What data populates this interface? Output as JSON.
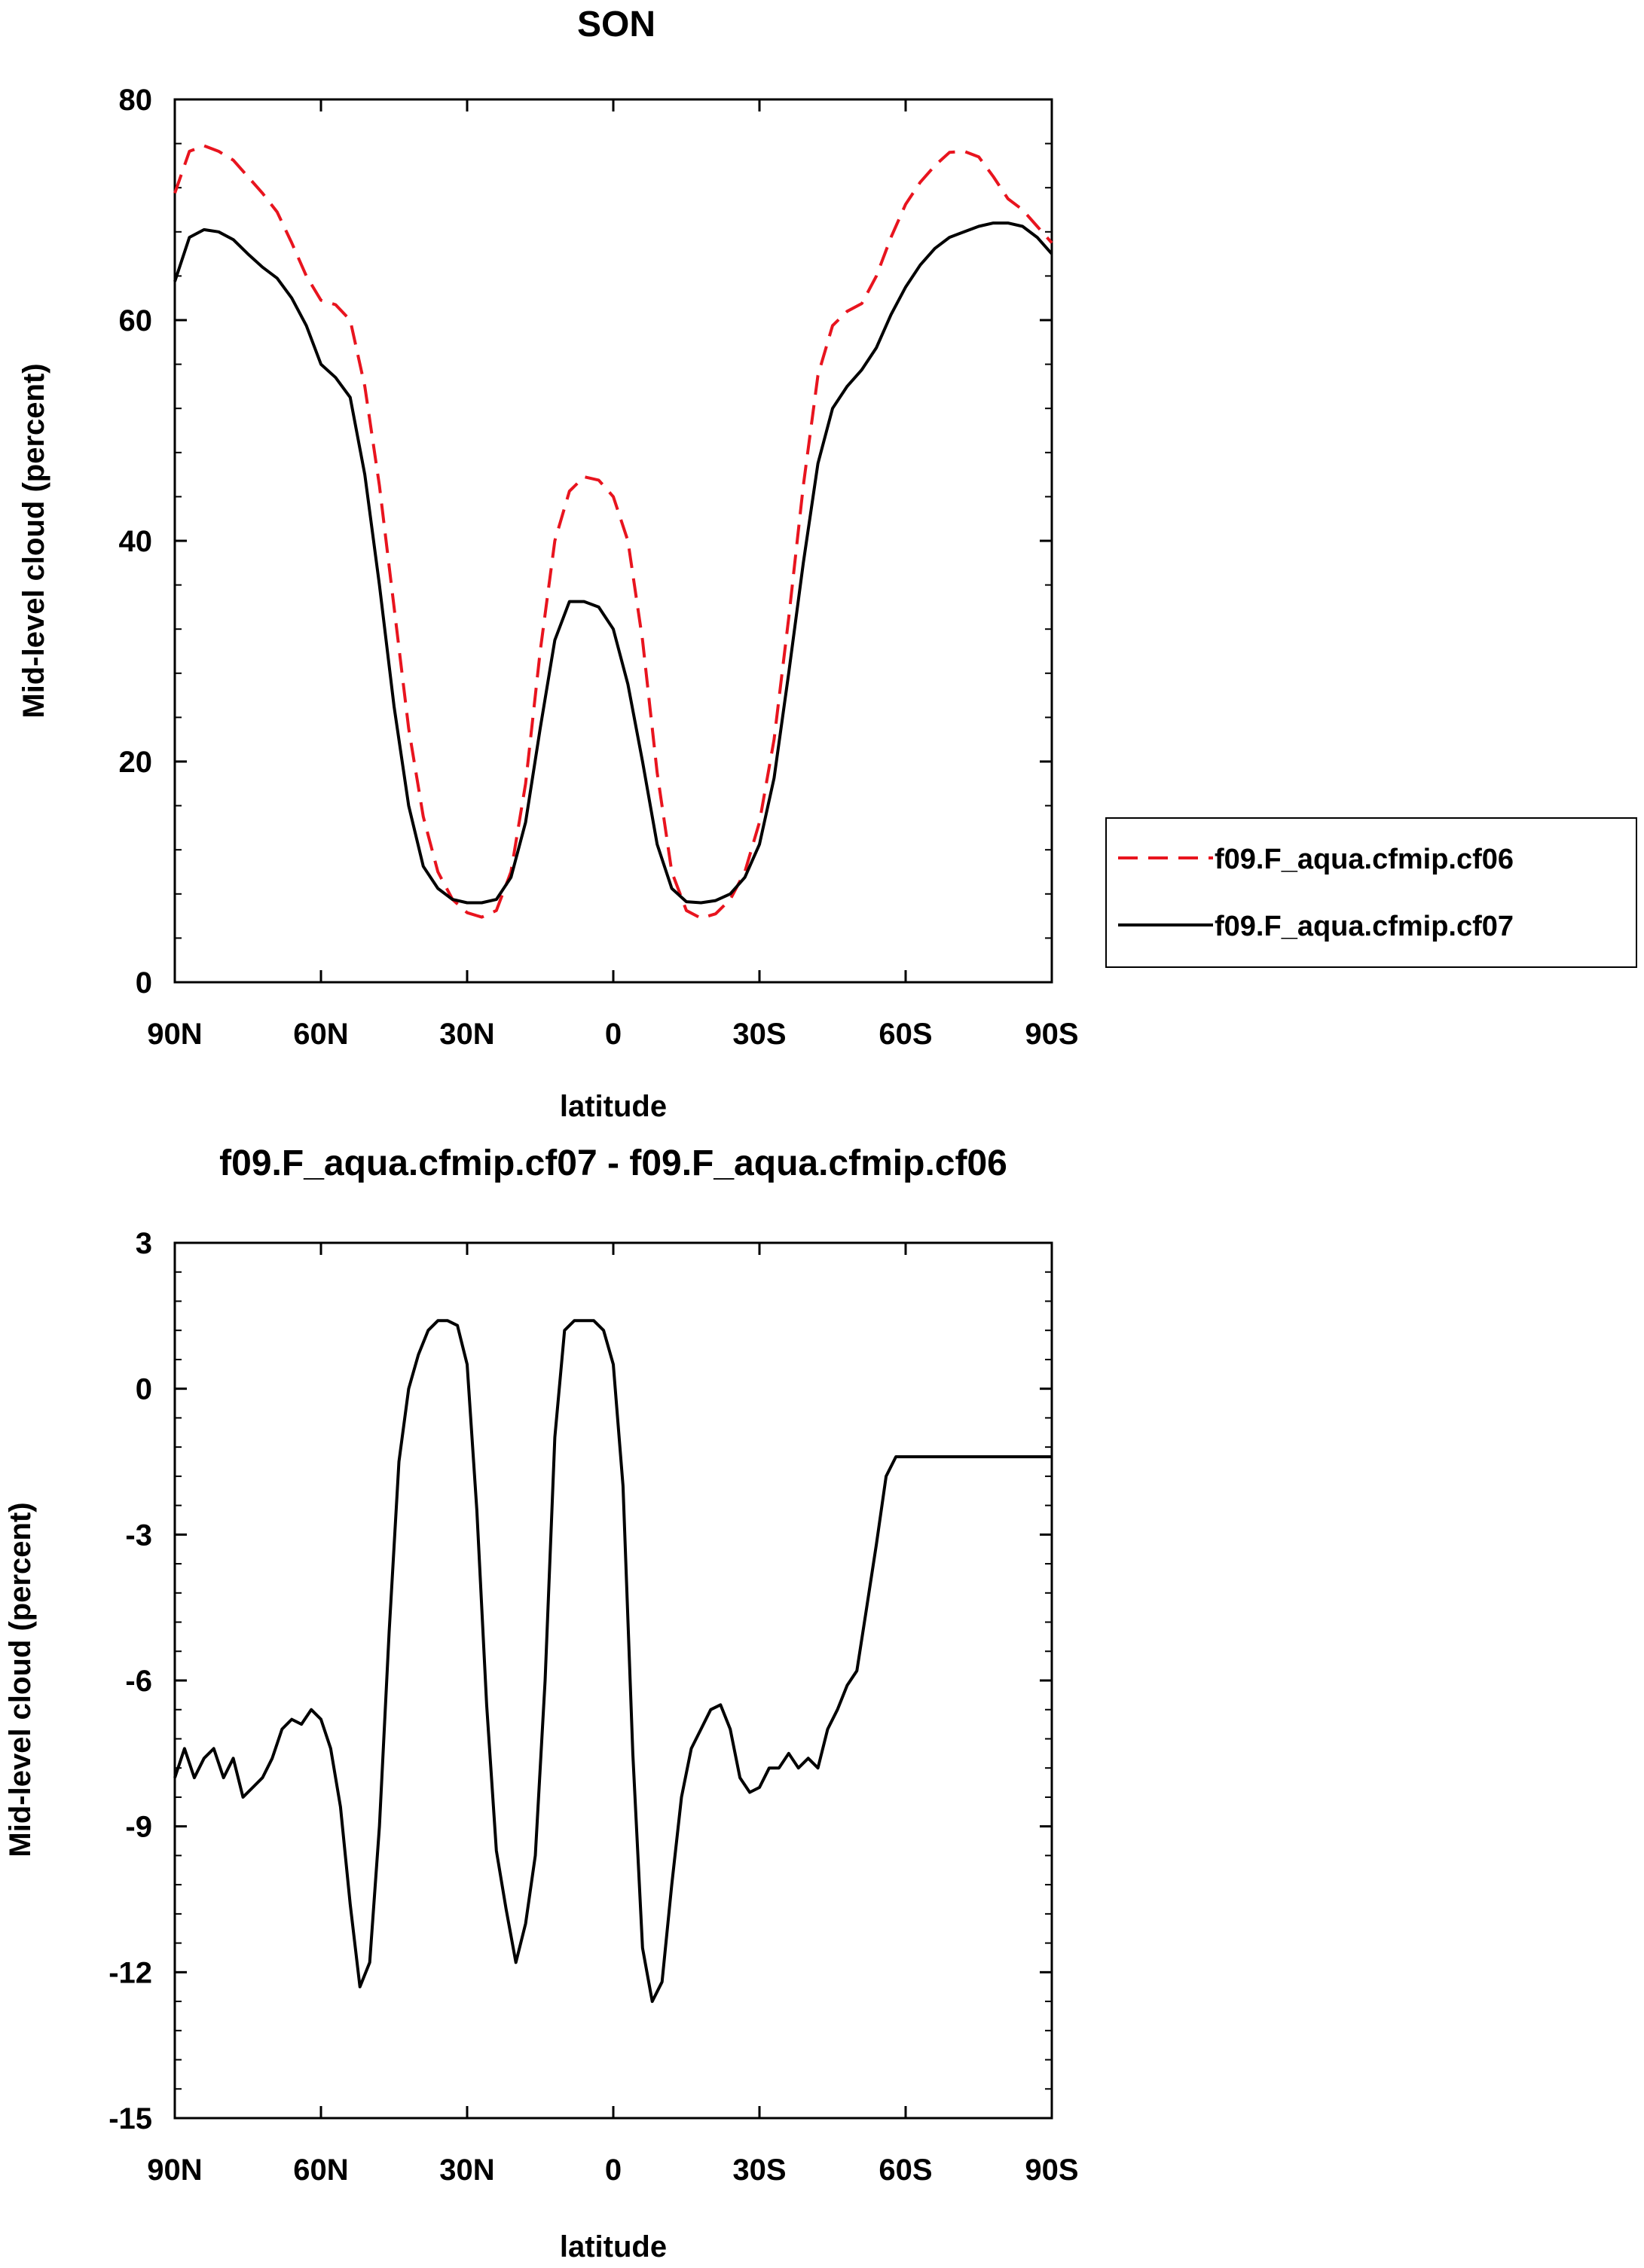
{
  "chart_data": [
    {
      "type": "line",
      "title": "SON",
      "xlabel": "latitude",
      "ylabel": "Mid-level cloud (percent)",
      "xlim": [
        90,
        -90
      ],
      "ylim": [
        0,
        80
      ],
      "xticks": [
        {
          "value": 90,
          "label": "90N"
        },
        {
          "value": 60,
          "label": "60N"
        },
        {
          "value": 30,
          "label": "30N"
        },
        {
          "value": 0,
          "label": "0"
        },
        {
          "value": -30,
          "label": "30S"
        },
        {
          "value": -60,
          "label": "60S"
        },
        {
          "value": -90,
          "label": "90S"
        }
      ],
      "yticks": [
        {
          "value": 0,
          "label": "0"
        },
        {
          "value": 20,
          "label": "20"
        },
        {
          "value": 40,
          "label": "40"
        },
        {
          "value": 60,
          "label": "60"
        },
        {
          "value": 80,
          "label": "80"
        }
      ],
      "yminor_step": 4,
      "legend_position": "right",
      "x": [
        90,
        87,
        84,
        81,
        78,
        75,
        72,
        69,
        66,
        63,
        60,
        57,
        54,
        51,
        48,
        45,
        42,
        39,
        36,
        33,
        30,
        27,
        24,
        21,
        18,
        15,
        12,
        9,
        6,
        3,
        0,
        -3,
        -6,
        -9,
        -12,
        -15,
        -18,
        -21,
        -24,
        -27,
        -30,
        -33,
        -36,
        -39,
        -42,
        -45,
        -48,
        -51,
        -54,
        -57,
        -60,
        -63,
        -66,
        -69,
        -72,
        -75,
        -78,
        -81,
        -84,
        -87,
        -90
      ],
      "series": [
        {
          "name": "f09.F_aqua.cfmip.cf06",
          "color": "#e8141e",
          "dash": "dashed",
          "values": [
            71.5,
            75.3,
            75.8,
            75.3,
            74.5,
            73.0,
            71.5,
            69.8,
            67.0,
            64.0,
            61.8,
            61.4,
            60.0,
            54.0,
            45.0,
            34.0,
            23.0,
            15.0,
            10.0,
            7.5,
            6.3,
            5.9,
            6.5,
            10.0,
            18.0,
            30.0,
            40.0,
            44.5,
            45.8,
            45.5,
            44.0,
            40.0,
            31.0,
            19.0,
            10.0,
            6.5,
            5.8,
            6.2,
            7.5,
            10.0,
            14.5,
            22.0,
            33.0,
            45.0,
            55.0,
            59.5,
            60.8,
            61.5,
            64.0,
            67.5,
            70.5,
            72.5,
            74.0,
            75.2,
            75.3,
            74.8,
            73.0,
            71.0,
            70.0,
            68.5,
            67.0
          ]
        },
        {
          "name": "f09.F_aqua.cfmip.cf07",
          "color": "#000000",
          "dash": "solid",
          "values": [
            63.5,
            67.5,
            68.2,
            68.0,
            67.3,
            66.0,
            64.8,
            63.8,
            62.0,
            59.5,
            56.0,
            54.8,
            53.0,
            46.0,
            36.0,
            25.0,
            16.0,
            10.5,
            8.5,
            7.5,
            7.2,
            7.2,
            7.5,
            9.5,
            14.5,
            23.0,
            31.0,
            34.5,
            34.5,
            34.0,
            32.0,
            27.0,
            20.0,
            12.5,
            8.5,
            7.3,
            7.2,
            7.4,
            8.0,
            9.5,
            12.5,
            18.5,
            28.0,
            38.0,
            47.0,
            52.0,
            54.0,
            55.5,
            57.5,
            60.5,
            63.0,
            65.0,
            66.5,
            67.5,
            68.0,
            68.5,
            68.8,
            68.8,
            68.5,
            67.5,
            66.0
          ]
        }
      ]
    },
    {
      "type": "line",
      "title": "f09.F_aqua.cfmip.cf07 - f09.F_aqua.cfmip.cf06",
      "xlabel": "latitude",
      "ylabel": "Mid-level cloud (percent)",
      "xlim": [
        90,
        -90
      ],
      "ylim": [
        -15,
        3
      ],
      "xticks": [
        {
          "value": 90,
          "label": "90N"
        },
        {
          "value": 60,
          "label": "60N"
        },
        {
          "value": 30,
          "label": "30N"
        },
        {
          "value": 0,
          "label": "0"
        },
        {
          "value": -30,
          "label": "30S"
        },
        {
          "value": -60,
          "label": "60S"
        },
        {
          "value": -90,
          "label": "90S"
        }
      ],
      "yticks": [
        {
          "value": 3,
          "label": "3"
        },
        {
          "value": 0,
          "label": "0"
        },
        {
          "value": -3,
          "label": "-3"
        },
        {
          "value": -6,
          "label": "-6"
        },
        {
          "value": -9,
          "label": "-9"
        },
        {
          "value": -12,
          "label": "-12"
        },
        {
          "value": -15,
          "label": "-15"
        }
      ],
      "yminor_step": 0.6,
      "x": [
        90,
        88,
        86,
        84,
        82,
        80,
        78,
        76,
        74,
        72,
        70,
        68,
        66,
        64,
        62,
        60,
        58,
        56,
        54,
        52,
        50,
        48,
        46,
        44,
        42,
        40,
        38,
        36,
        34,
        32,
        30,
        28,
        26,
        24,
        22,
        20,
        18,
        16,
        14,
        12,
        10,
        8,
        6,
        4,
        2,
        0,
        -2,
        -4,
        -6,
        -8,
        -10,
        -12,
        -14,
        -16,
        -18,
        -20,
        -22,
        -24,
        -26,
        -28,
        -30,
        -32,
        -34,
        -36,
        -38,
        -40,
        -42,
        -44,
        -46,
        -48,
        -50,
        -52,
        -54,
        -56,
        -58,
        -60,
        -62,
        -64,
        -66,
        -68,
        -70,
        -72,
        -74,
        -76,
        -78,
        -80,
        -82,
        -84,
        -86,
        -88,
        -90
      ],
      "series": [
        {
          "name": "f09.F_aqua.cfmip.cf07 - f09.F_aqua.cfmip.cf06",
          "color": "#000000",
          "dash": "solid",
          "values": [
            -8.0,
            -7.4,
            -8.0,
            -7.6,
            -7.4,
            -8.0,
            -7.6,
            -8.4,
            -8.2,
            -8.0,
            -7.6,
            -7.0,
            -6.8,
            -6.9,
            -6.6,
            -6.8,
            -7.4,
            -8.6,
            -10.6,
            -12.3,
            -11.8,
            -9.0,
            -5.0,
            -1.5,
            0.0,
            0.7,
            1.2,
            1.4,
            1.4,
            1.3,
            0.5,
            -2.5,
            -6.5,
            -9.5,
            -10.7,
            -11.8,
            -11.0,
            -9.6,
            -6.0,
            -1.0,
            1.2,
            1.4,
            1.4,
            1.4,
            1.2,
            0.5,
            -2.0,
            -7.5,
            -11.5,
            -12.6,
            -12.2,
            -10.2,
            -8.4,
            -7.4,
            -7.0,
            -6.6,
            -6.5,
            -7.0,
            -8.0,
            -8.3,
            -8.2,
            -7.8,
            -7.8,
            -7.5,
            -7.8,
            -7.6,
            -7.8,
            -7.0,
            -6.6,
            -6.1,
            -5.8,
            -4.5,
            -3.2,
            -1.8,
            -1.4,
            -1.4,
            -1.4,
            -1.4,
            -1.4,
            -1.4,
            -1.4,
            -1.4,
            -1.4,
            -1.4,
            -1.4,
            -1.4,
            -1.4,
            -1.4,
            -1.4,
            -1.4,
            -1.4
          ]
        }
      ]
    }
  ]
}
